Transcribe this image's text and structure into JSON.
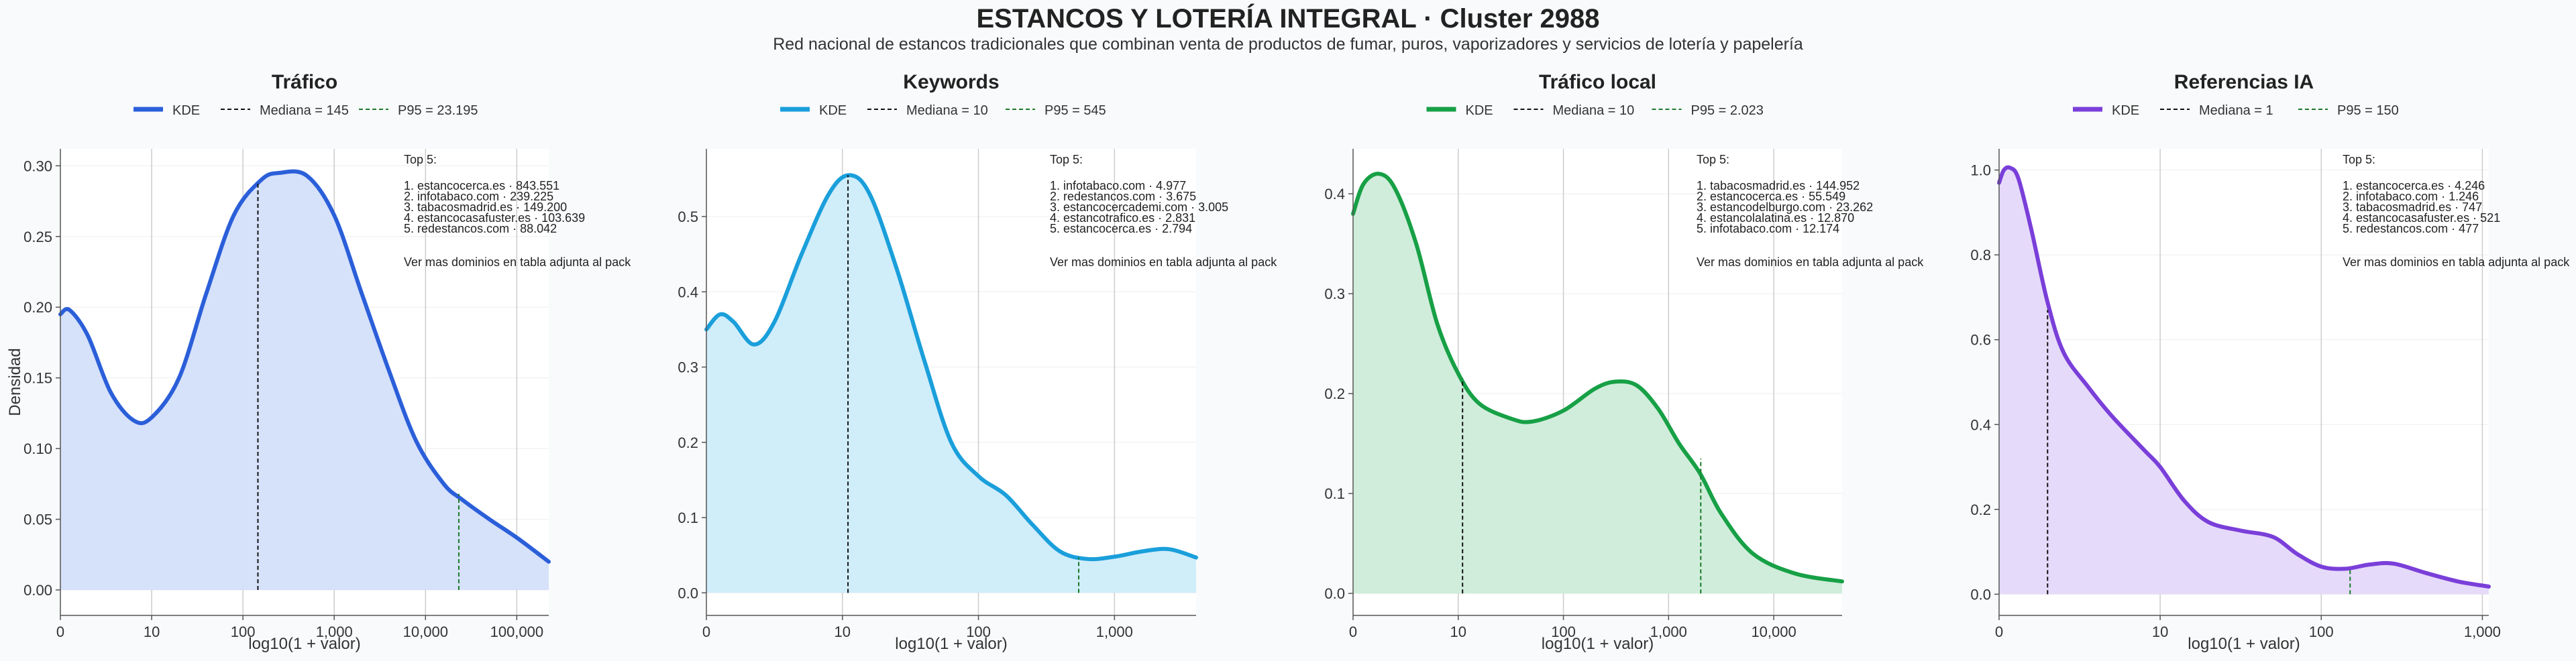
{
  "title": "ESTANCOS Y LOTERÍA INTEGRAL · Cluster 2988",
  "subtitle": "Red nacional de estancos tradicionales que combinan venta de productos de fumar, puros, vaporizadores y servicios de lotería y papelería",
  "legend_labels": {
    "kde": "KDE"
  },
  "chart_data": [
    {
      "type": "area",
      "title": "Tráfico",
      "xlabel": "log10(1 + valor)",
      "ylabel": "Densidad",
      "color": "#2b5fd9",
      "fill": "#d6e1fa",
      "x_ticks": [
        "0",
        "10",
        "100",
        "1,000",
        "10,000",
        "100,000"
      ],
      "xlim": [
        0,
        5.35
      ],
      "y_ticks": [
        "0.00",
        "0.05",
        "0.10",
        "0.15",
        "0.20",
        "0.25",
        "0.30"
      ],
      "ylim": [
        -0.018,
        0.312
      ],
      "y_tick_values": [
        0,
        0.05,
        0.1,
        0.15,
        0.2,
        0.25,
        0.3
      ],
      "median": {
        "label": "Mediana = 145",
        "x": 2.164,
        "y": 0.289
      },
      "p95": {
        "label": "P95 = 23.195",
        "x": 4.365,
        "y": 0.068
      },
      "top_title": "Top 5:",
      "top_items": [
        "1. estancocerca.es · 843.551",
        "2. infotabaco.com · 239.225",
        "3. tabacosmadrid.es · 149.200",
        "4. estancocasafuster.es · 103.639",
        "5. redestancos.com · 88.042"
      ],
      "top_footer": "Ver mas dominios en tabla adjunta al pack",
      "kde": [
        [
          0,
          0.195
        ],
        [
          0.1,
          0.198
        ],
        [
          0.3,
          0.18
        ],
        [
          0.55,
          0.14
        ],
        [
          0.8,
          0.12
        ],
        [
          1.0,
          0.122
        ],
        [
          1.3,
          0.15
        ],
        [
          1.6,
          0.21
        ],
        [
          1.9,
          0.265
        ],
        [
          2.2,
          0.29
        ],
        [
          2.4,
          0.295
        ],
        [
          2.7,
          0.293
        ],
        [
          3.0,
          0.265
        ],
        [
          3.3,
          0.21
        ],
        [
          3.6,
          0.155
        ],
        [
          3.9,
          0.105
        ],
        [
          4.2,
          0.075
        ],
        [
          4.4,
          0.064
        ],
        [
          4.7,
          0.05
        ],
        [
          5.0,
          0.037
        ],
        [
          5.35,
          0.02
        ]
      ]
    },
    {
      "type": "area",
      "title": "Keywords",
      "xlabel": "log10(1 + valor)",
      "ylabel": "",
      "color": "#1a9fdb",
      "fill": "#d0edfa",
      "x_ticks": [
        "0",
        "10",
        "100",
        "1,000"
      ],
      "xlim": [
        0,
        3.6
      ],
      "y_ticks": [
        "0.0",
        "0.1",
        "0.2",
        "0.3",
        "0.4",
        "0.5"
      ],
      "ylim": [
        -0.03,
        0.59
      ],
      "y_tick_values": [
        0,
        0.1,
        0.2,
        0.3,
        0.4,
        0.5
      ],
      "median": {
        "label": "Mediana = 10",
        "x": 1.041,
        "y": 0.555
      },
      "p95": {
        "label": "P95 = 545",
        "x": 2.737,
        "y": 0.047
      },
      "top_title": "Top 5:",
      "top_items": [
        "1. infotabaco.com · 4.977",
        "2. redestancos.com · 3.675",
        "3. estancocercademi.com · 3.005",
        "4. estancotrafico.es · 2.831",
        "5. estancocerca.es · 2.794"
      ],
      "top_footer": "Ver mas dominios en tabla adjunta al pack",
      "kde": [
        [
          0,
          0.35
        ],
        [
          0.1,
          0.37
        ],
        [
          0.2,
          0.36
        ],
        [
          0.35,
          0.33
        ],
        [
          0.5,
          0.36
        ],
        [
          0.7,
          0.45
        ],
        [
          0.9,
          0.53
        ],
        [
          1.05,
          0.555
        ],
        [
          1.2,
          0.53
        ],
        [
          1.4,
          0.43
        ],
        [
          1.6,
          0.31
        ],
        [
          1.8,
          0.2
        ],
        [
          2.0,
          0.155
        ],
        [
          2.2,
          0.13
        ],
        [
          2.4,
          0.09
        ],
        [
          2.6,
          0.055
        ],
        [
          2.8,
          0.045
        ],
        [
          3.0,
          0.048
        ],
        [
          3.2,
          0.055
        ],
        [
          3.4,
          0.058
        ],
        [
          3.6,
          0.047
        ]
      ]
    },
    {
      "type": "area",
      "title": "Tráfico local",
      "xlabel": "log10(1 + valor)",
      "ylabel": "",
      "color": "#17a046",
      "fill": "#d0eddb",
      "x_ticks": [
        "0",
        "10",
        "100",
        "1,000",
        "10,000"
      ],
      "xlim": [
        0,
        4.65
      ],
      "y_ticks": [
        "0.0",
        "0.1",
        "0.2",
        "0.3",
        "0.4"
      ],
      "ylim": [
        -0.022,
        0.445
      ],
      "y_tick_values": [
        0,
        0.1,
        0.2,
        0.3,
        0.4
      ],
      "median": {
        "label": "Mediana = 10",
        "x": 1.041,
        "y": 0.215
      },
      "p95": {
        "label": "P95 = 2.023",
        "x": 3.306,
        "y": 0.135
      },
      "top_title": "Top 5:",
      "top_items": [
        "1. tabacosmadrid.es · 144.952",
        "2. estancocerca.es · 55.549",
        "3. estancodelburgo.com · 23.262",
        "4. estancolalatina.es · 12.870",
        "5. infotabaco.com · 12.174"
      ],
      "top_footer": "Ver mas dominios en tabla adjunta al pack",
      "kde": [
        [
          0,
          0.38
        ],
        [
          0.1,
          0.41
        ],
        [
          0.25,
          0.42
        ],
        [
          0.4,
          0.405
        ],
        [
          0.6,
          0.35
        ],
        [
          0.8,
          0.27
        ],
        [
          1.0,
          0.22
        ],
        [
          1.2,
          0.19
        ],
        [
          1.5,
          0.175
        ],
        [
          1.7,
          0.172
        ],
        [
          2.0,
          0.183
        ],
        [
          2.3,
          0.205
        ],
        [
          2.5,
          0.212
        ],
        [
          2.7,
          0.208
        ],
        [
          2.9,
          0.185
        ],
        [
          3.1,
          0.15
        ],
        [
          3.3,
          0.12
        ],
        [
          3.5,
          0.08
        ],
        [
          3.8,
          0.04
        ],
        [
          4.2,
          0.02
        ],
        [
          4.65,
          0.012
        ]
      ]
    },
    {
      "type": "area",
      "title": "Referencias IA",
      "xlabel": "log10(1 + valor)",
      "ylabel": "",
      "color": "#7a3fd9",
      "fill": "#e6dafa",
      "x_ticks": [
        "0",
        "10",
        "100",
        "1,000"
      ],
      "xlim": [
        0,
        3.04
      ],
      "y_ticks": [
        "0.0",
        "0.2",
        "0.4",
        "0.6",
        "0.8",
        "1.0"
      ],
      "ylim": [
        -0.05,
        1.05
      ],
      "y_tick_values": [
        0,
        0.2,
        0.4,
        0.6,
        0.8,
        1.0
      ],
      "median": {
        "label": "Mediana = 1",
        "x": 0.301,
        "y": 0.67
      },
      "p95": {
        "label": "P95 = 150",
        "x": 2.179,
        "y": 0.06
      },
      "top_title": "Top 5:",
      "top_items": [
        "1. estancocerca.es · 4.246",
        "2. infotabaco.com · 1.246",
        "3. tabacosmadrid.es · 747",
        "4. estancocasafuster.es · 521",
        "5. redestancos.com · 477"
      ],
      "top_footer": "Ver mas dominios en tabla adjunta al pack",
      "kde": [
        [
          0,
          0.97
        ],
        [
          0.03,
          1.0
        ],
        [
          0.07,
          1.005
        ],
        [
          0.12,
          0.98
        ],
        [
          0.2,
          0.86
        ],
        [
          0.3,
          0.69
        ],
        [
          0.4,
          0.57
        ],
        [
          0.55,
          0.49
        ],
        [
          0.7,
          0.42
        ],
        [
          0.9,
          0.34
        ],
        [
          1.0,
          0.3
        ],
        [
          1.15,
          0.22
        ],
        [
          1.3,
          0.17
        ],
        [
          1.5,
          0.15
        ],
        [
          1.7,
          0.135
        ],
        [
          1.85,
          0.095
        ],
        [
          2.0,
          0.065
        ],
        [
          2.15,
          0.06
        ],
        [
          2.3,
          0.07
        ],
        [
          2.45,
          0.072
        ],
        [
          2.65,
          0.05
        ],
        [
          2.85,
          0.03
        ],
        [
          3.04,
          0.018
        ]
      ]
    }
  ]
}
